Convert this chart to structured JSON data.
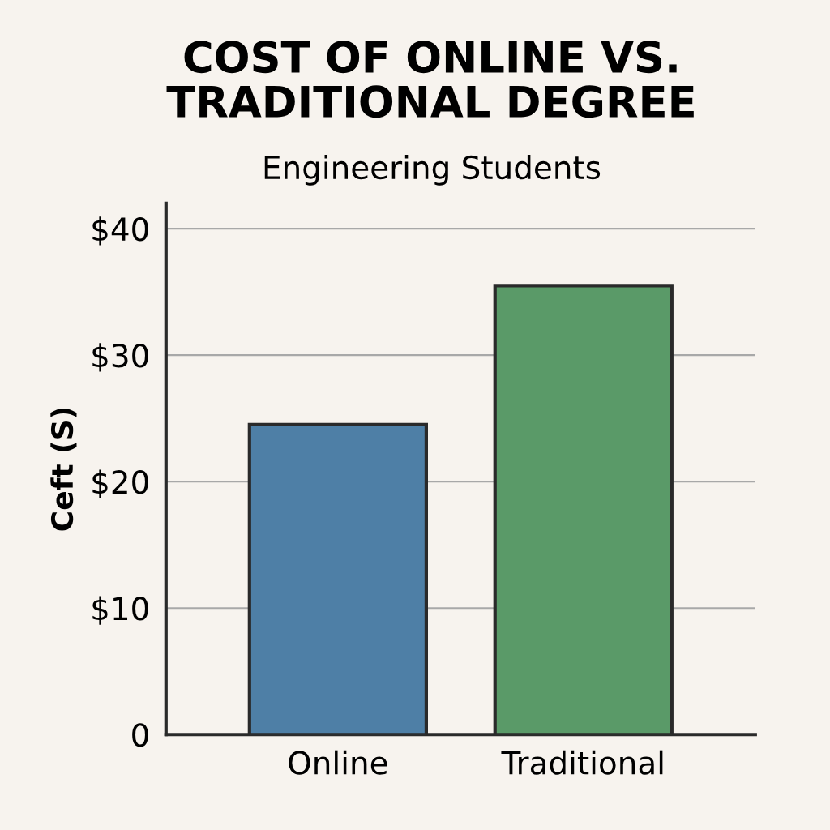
{
  "chart_data": {
    "type": "bar",
    "title": "COST OF ONLINE VS.\nTRADITIONAL DEGREE",
    "subtitle": "Engineering Students",
    "ylabel": "Ceft (S)",
    "categories": [
      "Online",
      "Traditional"
    ],
    "values": [
      24.5,
      35.5
    ],
    "colors": [
      "#4e7fa6",
      "#5a9a68"
    ],
    "ylim": [
      0,
      42
    ],
    "yticks": [
      0,
      {
        "value": 10,
        "label": "$10"
      },
      {
        "value": 20,
        "label": "$20"
      },
      {
        "value": 30,
        "label": "$30"
      },
      {
        "value": 40,
        "label": "$40"
      }
    ],
    "grid": "y",
    "legend": false
  }
}
